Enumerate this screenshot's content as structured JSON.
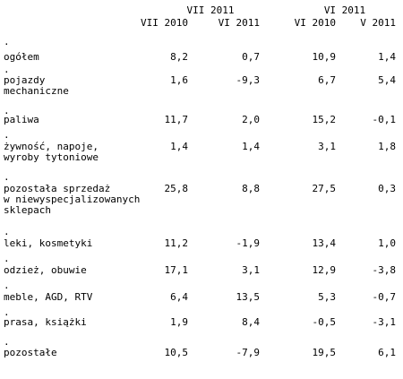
{
  "header": {
    "group1": "VII 2011",
    "group2": "VI 2011",
    "col1": "VII 2010",
    "col2": "VI 2011",
    "col3": "VI 2010",
    "col4": "V 2011"
  },
  "dot": ".",
  "rows": [
    {
      "label": [
        "ogółem"
      ],
      "values": [
        "8,2",
        "0,7",
        "10,9",
        "1,4"
      ]
    },
    {
      "label": [
        "pojazdy",
        "mechaniczne"
      ],
      "values": [
        "1,6",
        "-9,3",
        "6,7",
        "5,4"
      ]
    },
    {
      "label": [
        "paliwa"
      ],
      "values": [
        "11,7",
        "2,0",
        "15,2",
        "-0,1"
      ]
    },
    {
      "label": [
        "żywność, napoje,",
        "wyroby tytoniowe"
      ],
      "values": [
        "1,4",
        "1,4",
        "3,1",
        "1,8"
      ]
    },
    {
      "label": [
        "pozostała sprzedaż",
        "w niewyspecjalizowanych",
        "sklepach"
      ],
      "values": [
        "25,8",
        "8,8",
        "27,5",
        "0,3"
      ]
    },
    {
      "label": [
        "leki, kosmetyki"
      ],
      "values": [
        "11,2",
        "-1,9",
        "13,4",
        "1,0"
      ]
    },
    {
      "label": [
        "odzież, obuwie"
      ],
      "values": [
        "17,1",
        "3,1",
        "12,9",
        "-3,8"
      ]
    },
    {
      "label": [
        "meble, AGD, RTV"
      ],
      "values": [
        "6,4",
        "13,5",
        "5,3",
        "-0,7"
      ]
    },
    {
      "label": [
        "prasa, książki"
      ],
      "values": [
        "1,9",
        "8,4",
        "-0,5",
        "-3,1"
      ]
    },
    {
      "label": [
        "pozostałe"
      ],
      "values": [
        "10,5",
        "-7,9",
        "19,5",
        "6,1"
      ]
    }
  ]
}
